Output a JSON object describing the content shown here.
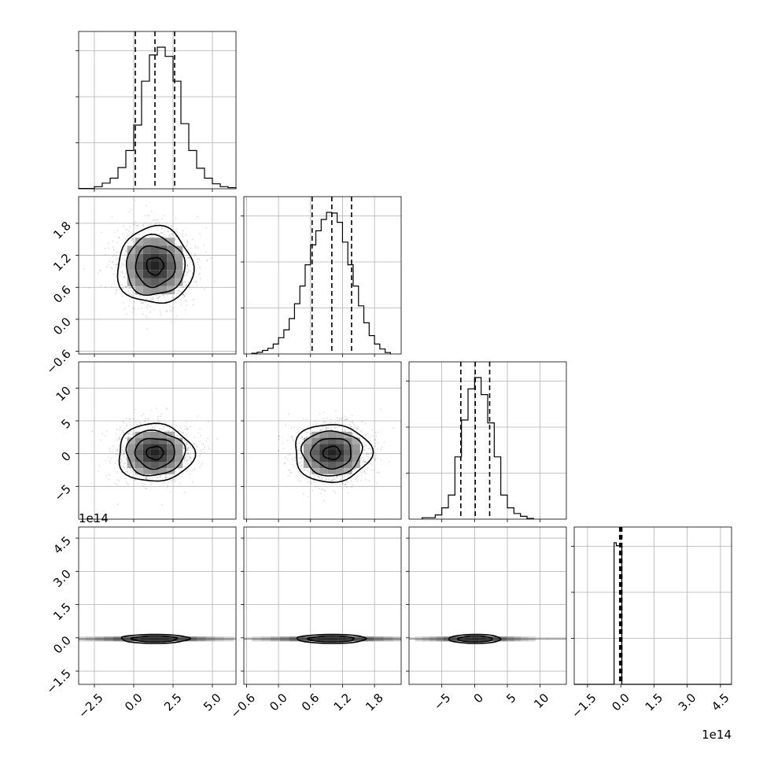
{
  "chart_data": {
    "type": "corner",
    "title": "",
    "parameters": [
      "",
      "",
      "",
      ""
    ],
    "offset_labels": {
      "p3_y": "1e14",
      "p3_x": "1e14"
    },
    "axes": [
      {
        "range": [
          -3.5,
          6.5
        ],
        "ticks": [
          -2.5,
          0.0,
          2.5,
          5.0
        ],
        "tick_labels": [
          "−2.5",
          "0.0",
          "2.5",
          "5.0"
        ]
      },
      {
        "range": [
          -0.65,
          2.3
        ],
        "ticks": [
          -0.6,
          0.0,
          0.6,
          1.2,
          1.8
        ],
        "tick_labels": [
          "−0.6",
          "0.0",
          "0.6",
          "1.2",
          "1.8"
        ]
      },
      {
        "range": [
          -10,
          14
        ],
        "ticks": [
          -5,
          0,
          5,
          10
        ],
        "tick_labels": [
          "−5",
          "0",
          "5",
          "10"
        ]
      },
      {
        "range": [
          -2.1,
          5.0
        ],
        "ticks": [
          -1.5,
          0.0,
          1.5,
          3.0,
          4.5
        ],
        "tick_labels": [
          "−1.5",
          "0.0",
          "1.5",
          "3.0",
          "4.5"
        ]
      }
    ],
    "histograms": [
      {
        "edges": [
          -3.5,
          -2.5,
          -2.0,
          -1.5,
          -1.0,
          -0.5,
          0.0,
          0.5,
          1.0,
          1.5,
          2.0,
          2.5,
          3.0,
          3.5,
          4.0,
          4.5,
          5.0,
          5.5,
          6.0,
          6.5
        ],
        "counts": [
          0.002,
          0.015,
          0.04,
          0.075,
          0.15,
          0.27,
          0.45,
          0.76,
          0.945,
          1.0,
          0.935,
          0.76,
          0.46,
          0.27,
          0.145,
          0.075,
          0.035,
          0.015,
          0.008
        ],
        "quantiles": [
          0.1,
          1.35,
          2.6
        ]
      },
      {
        "edges": [
          -0.5,
          -0.4,
          -0.3,
          -0.2,
          -0.1,
          0.0,
          0.1,
          0.2,
          0.3,
          0.4,
          0.5,
          0.6,
          0.7,
          0.8,
          0.9,
          1.0,
          1.1,
          1.2,
          1.3,
          1.4,
          1.5,
          1.6,
          1.7,
          1.8,
          1.9,
          2.0,
          2.1
        ],
        "counts": [
          0.005,
          0.012,
          0.025,
          0.04,
          0.07,
          0.115,
          0.17,
          0.25,
          0.355,
          0.48,
          0.63,
          0.77,
          0.87,
          0.95,
          1.0,
          0.995,
          0.93,
          0.79,
          0.63,
          0.48,
          0.34,
          0.22,
          0.13,
          0.07,
          0.035,
          0.01
        ],
        "quantiles": [
          0.63,
          1.0,
          1.37
        ]
      },
      {
        "edges": [
          -8,
          -6,
          -5,
          -4,
          -3,
          -2,
          -1,
          0,
          1,
          2,
          3,
          4,
          5,
          6,
          7,
          8,
          9
        ],
        "counts": [
          0.01,
          0.03,
          0.08,
          0.17,
          0.44,
          0.7,
          0.92,
          1.0,
          0.88,
          0.68,
          0.44,
          0.17,
          0.08,
          0.04,
          0.02,
          0.005
        ],
        "quantiles": [
          -2.1,
          0.1,
          2.3
        ]
      },
      {
        "edges": [
          -2.1,
          -0.3,
          -0.2,
          0.05,
          5.0
        ],
        "counts": [
          0,
          1.0,
          0.98,
          0
        ],
        "quantiles": [
          -0.05,
          0.0,
          0.05
        ]
      }
    ],
    "densities": [
      {
        "x": 0,
        "y": 1,
        "center": [
          1.35,
          1.0
        ],
        "spread": [
          1.2,
          0.36
        ],
        "contour_levels": [
          2.0,
          1.55,
          1.05,
          0.45
        ]
      },
      {
        "x": 0,
        "y": 2,
        "center": [
          1.35,
          0.1
        ],
        "spread": [
          1.2,
          2.2
        ],
        "contour_levels": [
          2.0,
          1.55,
          1.05,
          0.45
        ]
      },
      {
        "x": 1,
        "y": 2,
        "center": [
          1.0,
          0.1
        ],
        "spread": [
          0.36,
          2.2
        ],
        "contour_levels": [
          2.0,
          1.55,
          1.05,
          0.45
        ]
      },
      {
        "x": 0,
        "y": 3,
        "center": [
          1.35,
          -0.05
        ],
        "spread": [
          1.2,
          0.015
        ],
        "contour_levels": [
          1.8,
          1.2
        ]
      },
      {
        "x": 1,
        "y": 3,
        "center": [
          1.0,
          -0.05
        ],
        "spread": [
          0.36,
          0.015
        ],
        "contour_levels": [
          1.8,
          1.2
        ]
      },
      {
        "x": 2,
        "y": 3,
        "center": [
          0.1,
          -0.05
        ],
        "spread": [
          2.2,
          0.015
        ],
        "contour_levels": [
          1.8,
          1.2
        ]
      }
    ],
    "grid": true,
    "point_color": "#000000",
    "line_color": "#000000",
    "grid_color": "#b0b0b0"
  }
}
